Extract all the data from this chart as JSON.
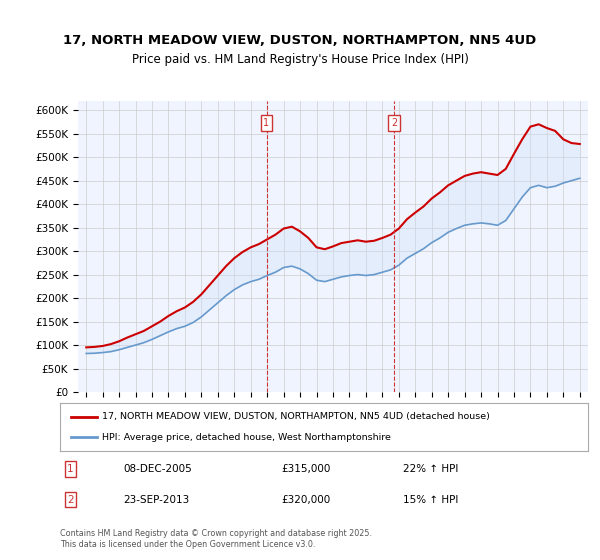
{
  "title_line1": "17, NORTH MEADOW VIEW, DUSTON, NORTHAMPTON, NN5 4UD",
  "title_line2": "Price paid vs. HM Land Registry's House Price Index (HPI)",
  "legend_red": "17, NORTH MEADOW VIEW, DUSTON, NORTHAMPTON, NN5 4UD (detached house)",
  "legend_blue": "HPI: Average price, detached house, West Northamptonshire",
  "annotation1_label": "1",
  "annotation1_date": "08-DEC-2005",
  "annotation1_price": "£315,000",
  "annotation1_hpi": "22% ↑ HPI",
  "annotation2_label": "2",
  "annotation2_date": "23-SEP-2013",
  "annotation2_price": "£320,000",
  "annotation2_hpi": "15% ↑ HPI",
  "footnote": "Contains HM Land Registry data © Crown copyright and database right 2025.\nThis data is licensed under the Open Government Licence v3.0.",
  "ylim": [
    0,
    620000
  ],
  "yticks": [
    0,
    50000,
    100000,
    150000,
    200000,
    250000,
    300000,
    350000,
    400000,
    450000,
    500000,
    550000,
    600000
  ],
  "background_color": "#ffffff",
  "plot_bg_color": "#f0f4ff",
  "red_color": "#cc0000",
  "blue_color": "#6699cc",
  "shade_color": "#d0e0f8"
}
